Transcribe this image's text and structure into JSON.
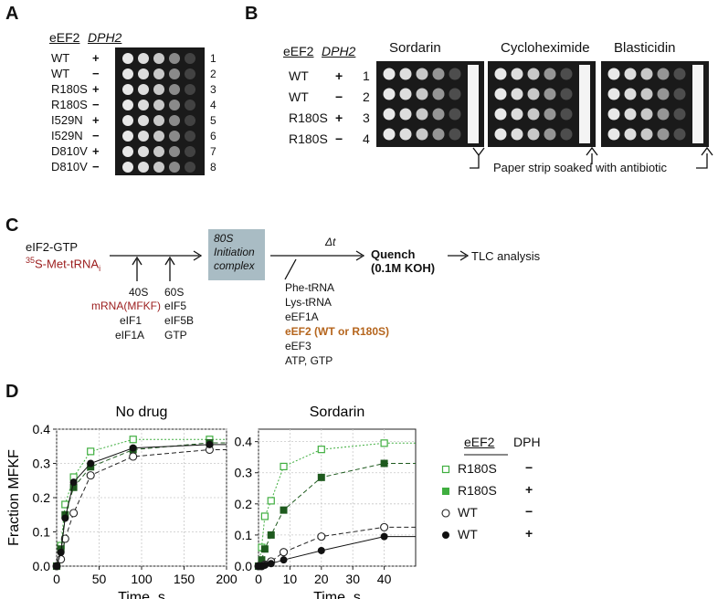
{
  "panel_a": {
    "letter": "A",
    "header_eef2": "eEF2",
    "header_dph2": "DPH2",
    "rows": [
      {
        "genotype": "WT",
        "dph2": "+",
        "num": "1"
      },
      {
        "genotype": "WT",
        "dph2": "−",
        "num": "2"
      },
      {
        "genotype": "R180S",
        "dph2": "+",
        "num": "3"
      },
      {
        "genotype": "R180S",
        "dph2": "−",
        "num": "4"
      },
      {
        "genotype": "I529N",
        "dph2": "+",
        "num": "5"
      },
      {
        "genotype": "I529N",
        "dph2": "−",
        "num": "6"
      },
      {
        "genotype": "D810V",
        "dph2": "+",
        "num": "7"
      },
      {
        "genotype": "D810V",
        "dph2": "−",
        "num": "8"
      }
    ]
  },
  "panel_b": {
    "letter": "B",
    "header_eef2": "eEF2",
    "header_dph2": "DPH2",
    "plates": [
      "Sordarin",
      "Cycloheximide",
      "Blasticidin"
    ],
    "rows": [
      {
        "genotype": "WT",
        "dph2": "+",
        "num": "1"
      },
      {
        "genotype": "WT",
        "dph2": "−",
        "num": "2"
      },
      {
        "genotype": "R180S",
        "dph2": "+",
        "num": "3"
      },
      {
        "genotype": "R180S",
        "dph2": "−",
        "num": "4"
      }
    ],
    "annotation": "Paper strip soaked with antibiotic"
  },
  "panel_c": {
    "letter": "C",
    "start_1": "eIF2-GTP",
    "start_2_sup": "35",
    "start_2": "S-Met-tRNA",
    "start_2_sub": "i",
    "add1": [
      "40S",
      "mRNA(MFKF)",
      "eIF1",
      "eIF1A"
    ],
    "add2": [
      "60S",
      "eIF5",
      "eIF5B",
      "GTP"
    ],
    "complex": [
      "80S",
      "Initiation",
      "complex"
    ],
    "delta_t": "Δt",
    "add3": [
      "Phe-tRNA",
      "Lys-tRNA",
      "eEF1A"
    ],
    "add3_highlight": "eEF2 (WT or R180S)",
    "add3_tail": [
      "eEF3",
      "ATP, GTP"
    ],
    "quench_1": "Quench",
    "quench_2": "(0.1M KOH)",
    "final": "TLC analysis",
    "colors": {
      "red": "#9b1c1c",
      "orange": "#b5651d",
      "box": "#a9bcc4"
    }
  },
  "panel_d": {
    "letter": "D",
    "legend_header_eef2": "eEF2",
    "legend_header_dph": "DPH",
    "legend": [
      {
        "label": "R180S",
        "dph": "−",
        "marker": "open-square"
      },
      {
        "label": "R180S",
        "dph": "+",
        "marker": "filled-square"
      },
      {
        "label": "WT",
        "dph": "−",
        "marker": "open-circle"
      },
      {
        "label": "WT",
        "dph": "+",
        "marker": "filled-circle"
      }
    ]
  },
  "chart_data": [
    {
      "type": "scatter",
      "title": "No drug",
      "xlabel": "Time, s",
      "ylabel": "Fraction MFKF",
      "xlim": [
        0,
        200
      ],
      "ylim": [
        0,
        0.4
      ],
      "xticks": [
        "0",
        "50",
        "100",
        "150",
        "200"
      ],
      "yticks": [
        "0.0",
        "0.1",
        "0.2",
        "0.3",
        "0.4"
      ],
      "grid": true,
      "series": [
        {
          "name": "R180S −",
          "marker": "open-square",
          "color": "#3fae3f",
          "x": [
            0,
            5,
            10,
            20,
            40,
            90,
            180
          ],
          "y": [
            0.0,
            0.06,
            0.18,
            0.26,
            0.335,
            0.37,
            0.37
          ]
        },
        {
          "name": "R180S +",
          "marker": "filled-square",
          "color": "#1e5a1e",
          "x": [
            0,
            5,
            10,
            20,
            40,
            90,
            180
          ],
          "y": [
            0.0,
            0.05,
            0.15,
            0.23,
            0.29,
            0.34,
            0.36
          ]
        },
        {
          "name": "WT −",
          "marker": "open-circle",
          "color": "#222222",
          "x": [
            0,
            5,
            10,
            20,
            40,
            90,
            180
          ],
          "y": [
            0.0,
            0.02,
            0.08,
            0.155,
            0.265,
            0.32,
            0.34
          ]
        },
        {
          "name": "WT +",
          "marker": "filled-circle",
          "color": "#111111",
          "x": [
            0,
            5,
            10,
            20,
            40,
            90,
            180
          ],
          "y": [
            0.0,
            0.04,
            0.14,
            0.245,
            0.3,
            0.345,
            0.355
          ]
        }
      ]
    },
    {
      "type": "scatter",
      "title": "Sordarin",
      "xlabel": "Time, s",
      "ylabel": "",
      "xlim": [
        0,
        50
      ],
      "ylim": [
        0,
        0.44
      ],
      "xticks": [
        "0",
        "10",
        "20",
        "30",
        "40"
      ],
      "yticks": [
        "0.0",
        "0.1",
        "0.2",
        "0.3",
        "0.4"
      ],
      "grid": true,
      "series": [
        {
          "name": "R180S −",
          "marker": "open-square",
          "color": "#3fae3f",
          "x": [
            0,
            1,
            2,
            4,
            8,
            20,
            40
          ],
          "y": [
            0.0,
            0.06,
            0.16,
            0.21,
            0.32,
            0.375,
            0.395
          ]
        },
        {
          "name": "R180S +",
          "marker": "filled-square",
          "color": "#1e5a1e",
          "x": [
            0,
            1,
            2,
            4,
            8,
            20,
            40
          ],
          "y": [
            0.0,
            0.02,
            0.055,
            0.1,
            0.18,
            0.285,
            0.33
          ]
        },
        {
          "name": "WT −",
          "marker": "open-circle",
          "color": "#222222",
          "x": [
            0,
            1,
            2,
            4,
            8,
            20,
            40
          ],
          "y": [
            0.0,
            0.0,
            0.005,
            0.015,
            0.045,
            0.095,
            0.125
          ]
        },
        {
          "name": "WT +",
          "marker": "filled-circle",
          "color": "#111111",
          "x": [
            0,
            1,
            2,
            4,
            8,
            20,
            40
          ],
          "y": [
            0.0,
            0.0,
            0.003,
            0.008,
            0.02,
            0.05,
            0.095
          ]
        }
      ]
    }
  ]
}
